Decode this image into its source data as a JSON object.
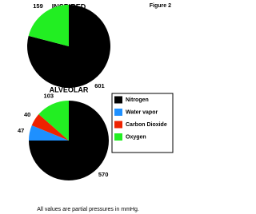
{
  "figure_label": "Figure 2",
  "chart_data": [
    {
      "type": "pie",
      "title": "INSPIRED",
      "categories": [
        "Nitrogen",
        "Oxygen"
      ],
      "values": [
        601,
        159
      ],
      "colors": [
        "#000000",
        "#22ee22"
      ]
    },
    {
      "type": "pie",
      "title": "ALVEOLAR",
      "categories": [
        "Nitrogen",
        "Water vapor",
        "Carbon Dioxide",
        "Oxygen"
      ],
      "values": [
        570,
        47,
        40,
        103
      ],
      "colors": [
        "#000000",
        "#1e90ff",
        "#ee2200",
        "#22ee22"
      ]
    }
  ],
  "footnote": "All values are partial pressures in mmHg."
}
